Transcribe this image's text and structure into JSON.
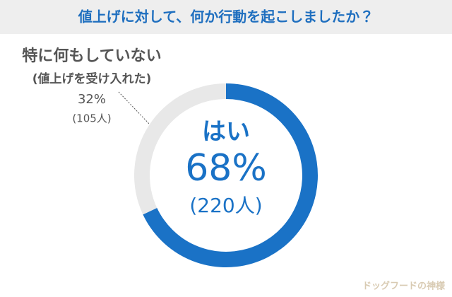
{
  "chart_data": {
    "type": "donut",
    "title": "値上げに対して、何か行動を起こしましたか？",
    "categories": [
      "はい",
      "特に何もしていない"
    ],
    "category_notes": [
      null,
      "(値上げを受け入れた)"
    ],
    "values": [
      68,
      32
    ],
    "value_labels": [
      "68%",
      "32%"
    ],
    "count_labels": [
      "(220人)",
      "(105人)"
    ],
    "colors": [
      "#1a72c6",
      "#e8e8e8"
    ]
  },
  "watermark": "ドッグフードの神様"
}
